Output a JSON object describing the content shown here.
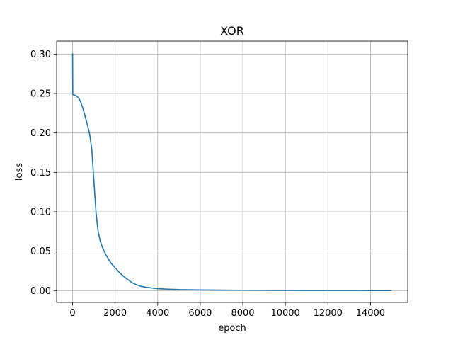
{
  "chart_data": {
    "type": "line",
    "title": "XOR",
    "xlabel": "epoch",
    "ylabel": "loss",
    "xlim": [
      -750,
      15750
    ],
    "ylim": [
      -0.015,
      0.3165
    ],
    "grid": true,
    "x_ticks": [
      0,
      2000,
      4000,
      6000,
      8000,
      10000,
      12000,
      14000
    ],
    "x_tick_labels": [
      "0",
      "2000",
      "4000",
      "6000",
      "8000",
      "10000",
      "12000",
      "14000"
    ],
    "y_ticks": [
      0.0,
      0.05,
      0.1,
      0.15,
      0.2,
      0.25,
      0.3
    ],
    "y_tick_labels": [
      "0.00",
      "0.05",
      "0.10",
      "0.15",
      "0.20",
      "0.25",
      "0.30"
    ],
    "colors": {
      "line": "#1f77b4",
      "grid": "#b0b0b0",
      "axes": "#000000"
    },
    "series": [
      {
        "x": [
          0,
          5,
          10,
          20,
          50,
          100,
          200,
          300,
          400,
          500,
          600,
          700,
          800,
          900,
          950,
          1000,
          1050,
          1100,
          1150,
          1200,
          1300,
          1400,
          1500,
          1600,
          1800,
          2000,
          2200,
          2400,
          2600,
          2800,
          3000,
          3200,
          3500,
          4000,
          4500,
          5000,
          6000,
          7000,
          8000,
          9000,
          10000,
          11000,
          12000,
          13000,
          14000,
          15000
        ],
        "y": [
          0.301,
          0.27,
          0.249,
          0.2485,
          0.2482,
          0.248,
          0.2465,
          0.244,
          0.238,
          0.23,
          0.22,
          0.21,
          0.199,
          0.18,
          0.16,
          0.14,
          0.12,
          0.1,
          0.087,
          0.075,
          0.063,
          0.055,
          0.049,
          0.044,
          0.035,
          0.029,
          0.023,
          0.018,
          0.014,
          0.01,
          0.0075,
          0.0055,
          0.004,
          0.0025,
          0.0018,
          0.0013,
          0.0009,
          0.0007,
          0.0005,
          0.0004,
          0.0003,
          0.00025,
          0.0002,
          0.00018,
          0.00015,
          0.00012
        ]
      }
    ]
  }
}
